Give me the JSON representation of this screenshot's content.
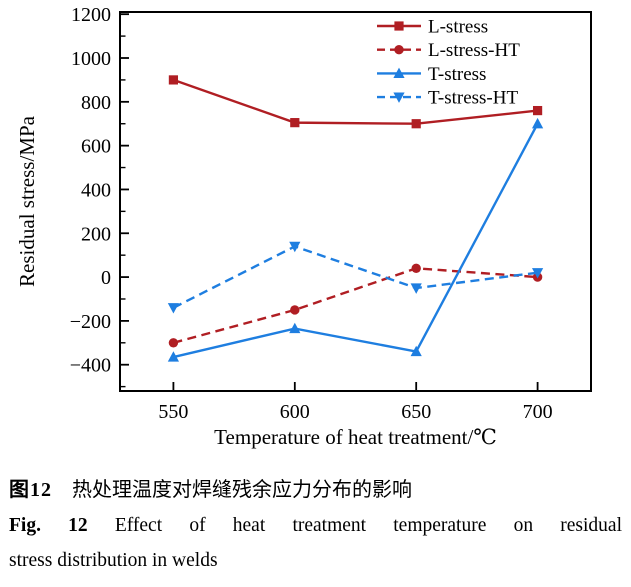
{
  "figure": {
    "caption_zh_label": "图12",
    "caption_zh_text": "热处理温度对焊缝残余应力分布的影响",
    "caption_en_label": "Fig. 12",
    "caption_en_line1": "Effect of heat treatment temperature on residual",
    "caption_en_line2": "stress distribution in welds"
  },
  "chart_data": {
    "type": "line",
    "title": "",
    "xlabel": "Temperature of heat treatment/℃",
    "ylabel": "Residual stress/MPa",
    "x": [
      550,
      600,
      650,
      700
    ],
    "series": [
      {
        "name": "L-stress",
        "color": "#B01E23",
        "line_style": "solid",
        "marker": "square",
        "values": [
          900,
          705,
          700,
          760
        ]
      },
      {
        "name": "L-stress-HT",
        "color": "#B01E23",
        "line_style": "dashed",
        "marker": "circle",
        "values": [
          -300,
          -150,
          40,
          0
        ]
      },
      {
        "name": "T-stress",
        "color": "#1E7EE0",
        "line_style": "solid",
        "marker": "triangle-up",
        "values": [
          -365,
          -235,
          -340,
          700
        ]
      },
      {
        "name": "T-stress-HT",
        "color": "#1E7EE0",
        "line_style": "dashed",
        "marker": "triangle-down",
        "values": [
          -140,
          140,
          -50,
          20
        ]
      }
    ],
    "xlim": [
      528,
      722
    ],
    "ylim": [
      -520,
      1210
    ],
    "x_ticks": [
      550,
      600,
      650,
      700
    ],
    "x_tick_labels": [
      "550",
      "600",
      "650",
      "700"
    ],
    "y_ticks": [
      -400,
      -200,
      0,
      200,
      400,
      600,
      800,
      1000,
      1200
    ],
    "y_tick_labels": [
      "−400",
      "−200",
      "0",
      "200",
      "400",
      "600",
      "800",
      "1000",
      "1200"
    ],
    "y_minor_ticks": [
      -500,
      -300,
      -100,
      100,
      300,
      500,
      700,
      900,
      1100
    ],
    "legend_position": "top-right",
    "grid": false,
    "axis_color": "#000000"
  }
}
